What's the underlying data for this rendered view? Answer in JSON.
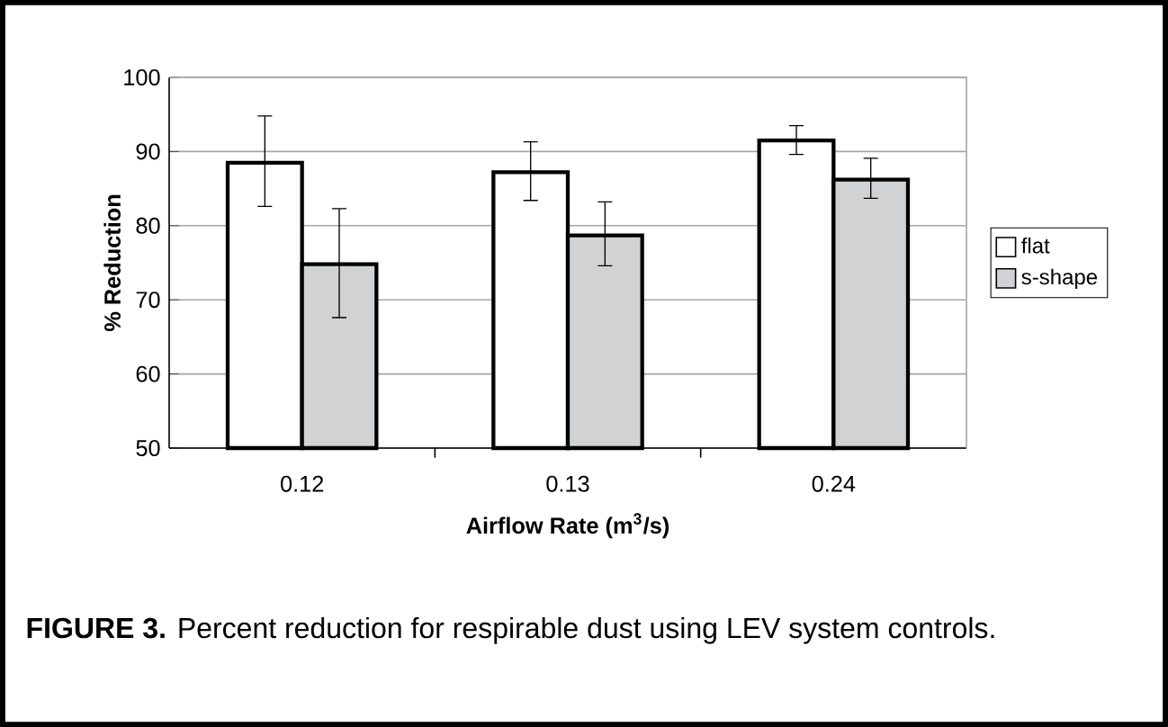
{
  "chart_data": {
    "type": "bar",
    "categories": [
      "0.12",
      "0.13",
      "0.24"
    ],
    "xlabel": "Airflow Rate (m$^{3}$/s)",
    "ylabel": "% Reduction",
    "series": [
      {
        "name": "flat",
        "color": "#ffffff",
        "values": [
          88.5,
          87.2,
          91.5
        ],
        "errors": [
          [
            82.6,
            94.8
          ],
          [
            83.4,
            91.3
          ],
          [
            89.6,
            93.5
          ]
        ]
      },
      {
        "name": "s-shape",
        "color": "#d0d2d3",
        "values": [
          74.8,
          78.7,
          86.2
        ],
        "errors": [
          [
            67.6,
            82.3
          ],
          [
            74.6,
            83.2
          ],
          [
            83.7,
            89.1
          ]
        ]
      }
    ],
    "ylim": [
      50,
      100
    ],
    "yticks": [
      50,
      60,
      70,
      80,
      90,
      100
    ],
    "grid": "y",
    "legend": "right",
    "annotations": [
      "**FIGURE 3.**  Percent reduction for respirable dust using LEV system controls."
    ]
  }
}
